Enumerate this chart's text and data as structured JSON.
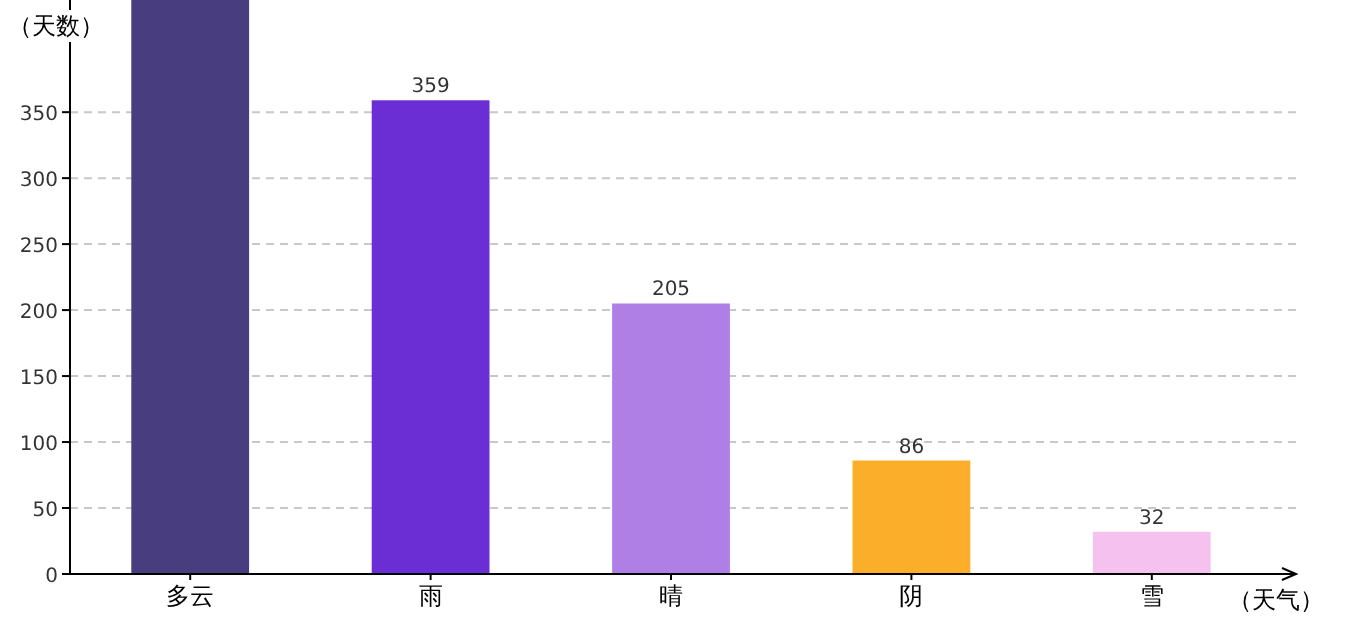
{
  "chart_data": {
    "type": "bar",
    "xlabel": "（天气）",
    "ylabel": "（天数）",
    "categories": [
      "多云",
      "雨",
      "晴",
      "阴",
      "雪"
    ],
    "values": [
      435,
      359,
      205,
      86,
      32
    ],
    "colors": [
      "#483d7e",
      "#6a2ed4",
      "#b07fe6",
      "#fbae2a",
      "#f5c2ef"
    ],
    "value_labels": [
      null,
      "359",
      "205",
      "86",
      "32"
    ],
    "ylim": [
      0,
      435
    ],
    "yticks": [
      0,
      50,
      100,
      150,
      200,
      250,
      300,
      350
    ],
    "grid": "y"
  }
}
